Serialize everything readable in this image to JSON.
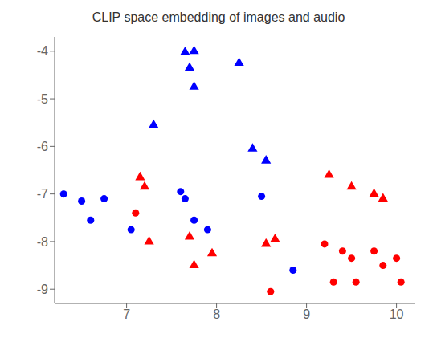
{
  "chart_data": {
    "type": "scatter",
    "title": "CLIP space embedding of images and audio",
    "xlim": [
      6.2,
      10.2
    ],
    "ylim": [
      -9.3,
      -3.7
    ],
    "xticks": [
      7,
      8,
      9,
      10
    ],
    "yticks": [
      -9,
      -8,
      -7,
      -6,
      -5,
      -4
    ],
    "grid": false,
    "series": [
      {
        "color": "blue",
        "marker": "circle",
        "x": [
          6.3,
          6.5,
          6.6,
          6.75,
          7.05,
          7.6,
          7.65,
          7.75,
          7.9,
          8.5,
          8.85
        ],
        "values": [
          -7.0,
          -7.15,
          -7.55,
          -7.1,
          -7.75,
          -6.95,
          -7.1,
          -7.55,
          -7.75,
          -7.05,
          -8.6
        ]
      },
      {
        "color": "blue",
        "marker": "triangle",
        "x": [
          7.3,
          7.65,
          7.75,
          7.7,
          7.75,
          8.25,
          8.4,
          8.55
        ],
        "values": [
          -5.55,
          -4.02,
          -4.0,
          -4.35,
          -4.75,
          -4.25,
          -6.05,
          -6.3
        ]
      },
      {
        "color": "red",
        "marker": "circle",
        "x": [
          7.1,
          9.2,
          9.3,
          9.4,
          9.5,
          9.55,
          9.75,
          9.85,
          10.0,
          10.05,
          8.6
        ],
        "values": [
          -7.4,
          -8.05,
          -8.85,
          -8.2,
          -8.35,
          -8.85,
          -8.2,
          -8.5,
          -8.35,
          -8.85,
          -9.05
        ]
      },
      {
        "color": "red",
        "marker": "triangle",
        "x": [
          7.15,
          7.2,
          7.25,
          7.7,
          7.75,
          7.95,
          8.55,
          8.65,
          9.25,
          9.5,
          9.75,
          9.85
        ],
        "values": [
          -6.65,
          -6.85,
          -8.0,
          -7.9,
          -8.5,
          -8.25,
          -8.05,
          -7.95,
          -6.6,
          -6.85,
          -7.0,
          -7.1
        ]
      }
    ]
  }
}
